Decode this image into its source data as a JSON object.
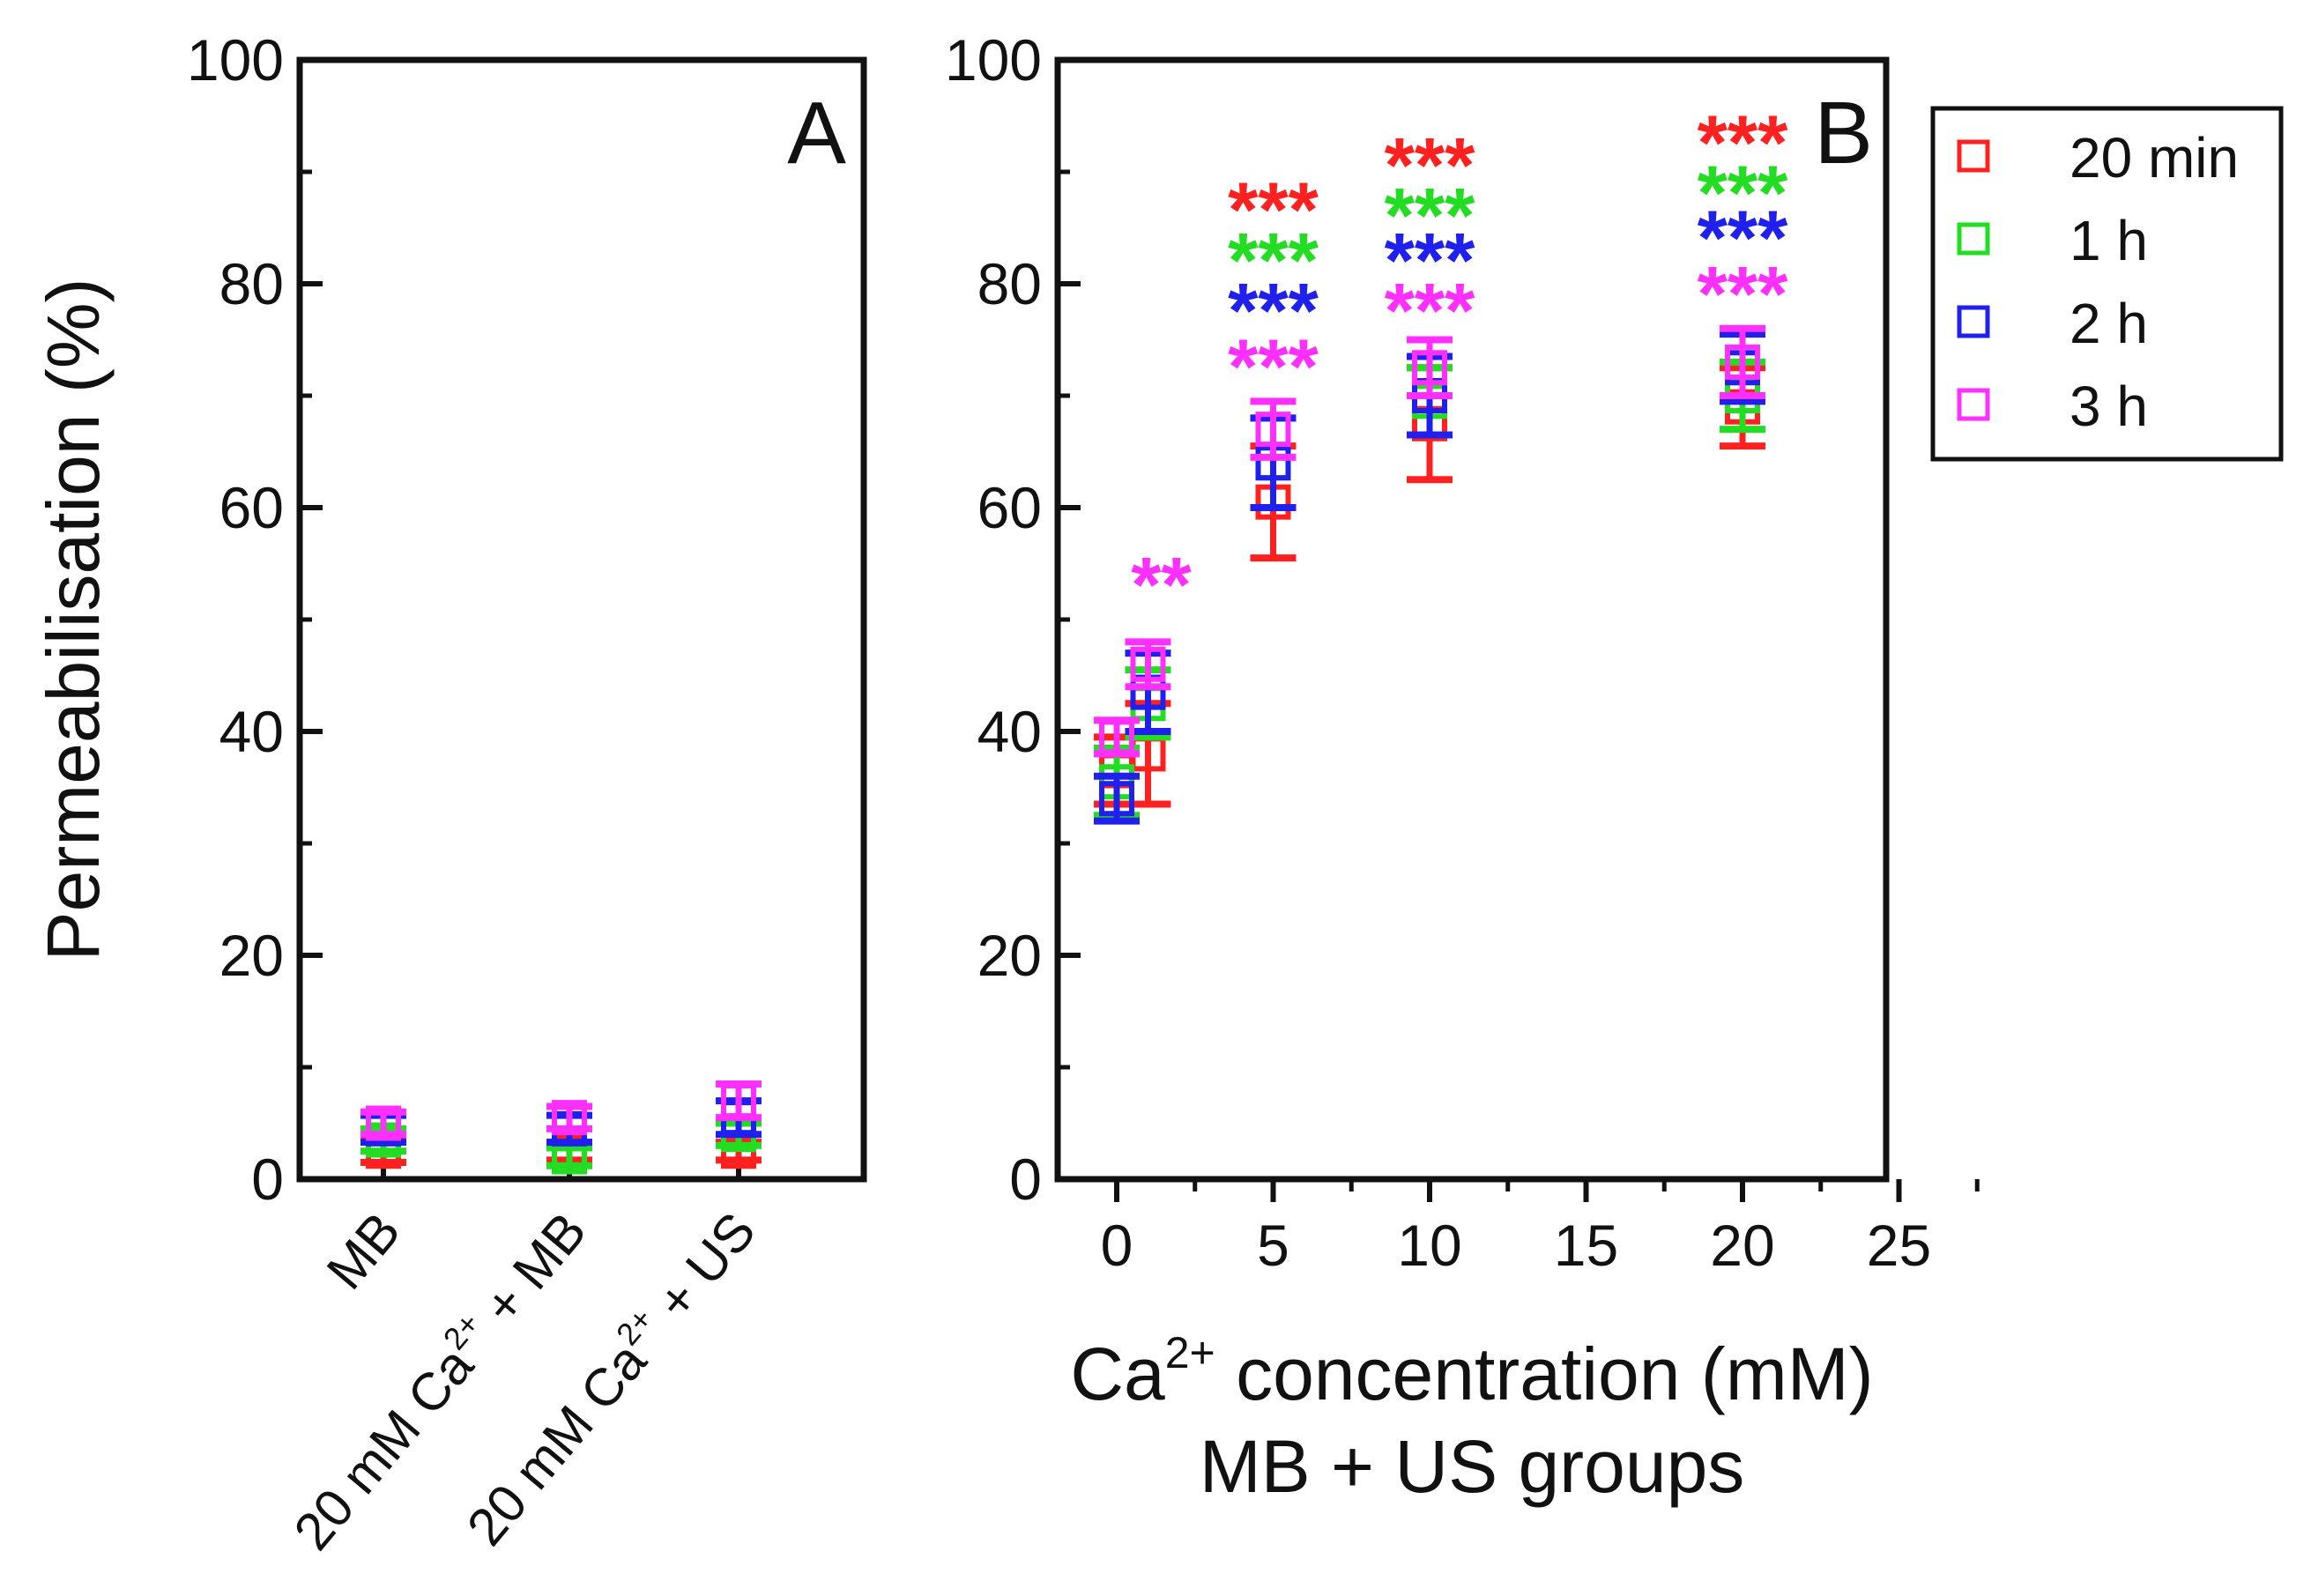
{
  "chart_data": [
    {
      "type": "scatter",
      "panel_label": "A",
      "ylabel": "Permeabilisation (%)",
      "ylim": [
        0,
        100
      ],
      "yticks": [
        0,
        20,
        40,
        60,
        80,
        100
      ],
      "categories": [
        "MB",
        "20 mM Ca2+ + MB",
        "20 mM Ca2+ + US"
      ],
      "category_label_parts": [
        {
          "pre": "MB",
          "sup": "",
          "post": ""
        },
        {
          "pre": "20 mM Ca",
          "sup": "2+",
          "post": " + MB"
        },
        {
          "pre": "20 mM Ca",
          "sup": "2+",
          "post": " + US"
        }
      ],
      "series": [
        {
          "name": "20 min",
          "color": "#ff2020",
          "values": [
            2.5,
            2.5,
            2.5
          ],
          "errors": [
            1.0,
            0.8,
            0.8
          ]
        },
        {
          "name": "1 h",
          "color": "#22dd22",
          "values": [
            3.5,
            2.0,
            4.0
          ],
          "errors": [
            1.0,
            0.8,
            1.0
          ]
        },
        {
          "name": "2 h",
          "color": "#2020ee",
          "values": [
            4.5,
            4.5,
            5.5
          ],
          "errors": [
            1.2,
            1.2,
            1.5
          ]
        },
        {
          "name": "3 h",
          "color": "#ff30ff",
          "values": [
            5.0,
            5.5,
            7.0
          ],
          "errors": [
            1.0,
            1.0,
            1.5
          ]
        }
      ],
      "grid": false
    },
    {
      "type": "scatter",
      "panel_label": "B",
      "xlabel_pre": "Ca",
      "xlabel_sup": "2+",
      "xlabel_post": " concentration (mM)",
      "xlabel_line2": "MB + US groups",
      "xlim": [
        -1,
        25
      ],
      "xticks": [
        0,
        5,
        10,
        15,
        20,
        25
      ],
      "ylim": [
        0,
        100
      ],
      "yticks": [
        0,
        20,
        40,
        60,
        80,
        100
      ],
      "x": [
        0,
        1,
        5,
        10,
        20
      ],
      "series": [
        {
          "name": "20 min",
          "color": "#ff2020",
          "values": [
            36.5,
            38.0,
            60.5,
            67.5,
            69.0
          ],
          "errors": [
            3.0,
            4.5,
            5.0,
            5.0,
            3.5
          ]
        },
        {
          "name": "1 h",
          "color": "#22dd22",
          "values": [
            35.5,
            42.5,
            64.0,
            69.5,
            70.0
          ],
          "errors": [
            3.0,
            3.0,
            4.0,
            3.0,
            3.0
          ]
        },
        {
          "name": "2 h",
          "color": "#2020ee",
          "values": [
            34.0,
            43.5,
            64.0,
            70.0,
            72.5
          ],
          "errors": [
            2.0,
            3.5,
            4.0,
            3.5,
            3.0
          ]
        },
        {
          "name": "3 h",
          "color": "#ff30ff",
          "values": [
            39.5,
            46.0,
            67.0,
            72.5,
            73.0
          ],
          "errors": [
            1.5,
            2.0,
            2.5,
            2.5,
            3.0
          ]
        }
      ],
      "significance": [
        {
          "x": 1,
          "series": "3 h",
          "label": "**",
          "y": 53.5
        },
        {
          "x": 5,
          "series": "20 min",
          "label": "***",
          "y": 87
        },
        {
          "x": 5,
          "series": "1 h",
          "label": "***",
          "y": 82.5
        },
        {
          "x": 5,
          "series": "2 h",
          "label": "***",
          "y": 78
        },
        {
          "x": 5,
          "series": "3 h",
          "label": "***",
          "y": 73
        },
        {
          "x": 10,
          "series": "20 min",
          "label": "***",
          "y": 91
        },
        {
          "x": 10,
          "series": "1 h",
          "label": "***",
          "y": 86.5
        },
        {
          "x": 10,
          "series": "2 h",
          "label": "***",
          "y": 82.5
        },
        {
          "x": 10,
          "series": "3 h",
          "label": "***",
          "y": 78
        },
        {
          "x": 20,
          "series": "20 min",
          "label": "***",
          "y": 93
        },
        {
          "x": 20,
          "series": "1 h",
          "label": "***",
          "y": 88.5
        },
        {
          "x": 20,
          "series": "2 h",
          "label": "***",
          "y": 84.5
        },
        {
          "x": 20,
          "series": "3 h",
          "label": "***",
          "y": 79.5
        }
      ],
      "legend": {
        "placement": "top-right",
        "entries": [
          "20 min",
          "1 h",
          "2 h",
          "3 h"
        ]
      },
      "grid": false
    }
  ]
}
